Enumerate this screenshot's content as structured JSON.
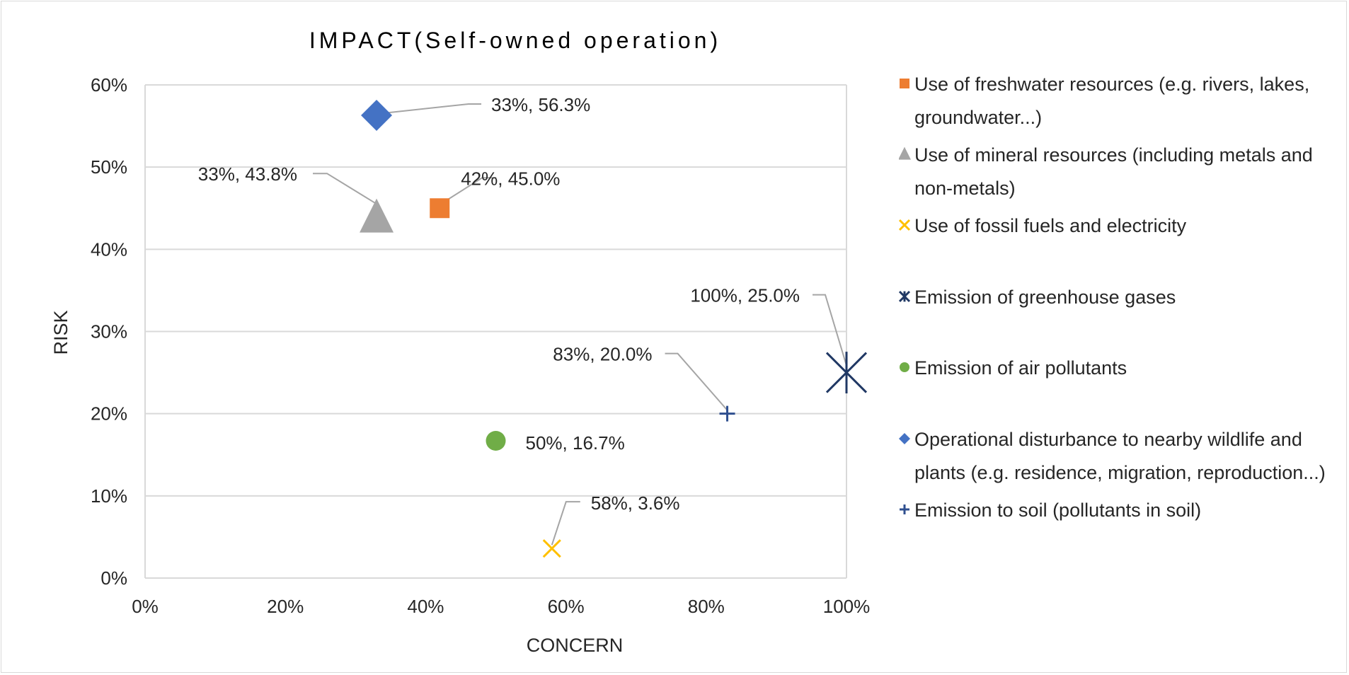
{
  "chart_data": {
    "type": "scatter",
    "title": "IMPACT(Self-owned operation)",
    "xlabel": "CONCERN",
    "ylabel": "RISK",
    "xlim": [
      0,
      1
    ],
    "ylim": [
      0,
      0.6
    ],
    "x_ticks": [
      0,
      0.2,
      0.4,
      0.6,
      0.8,
      1.0
    ],
    "x_tick_labels": [
      "0%",
      "20%",
      "40%",
      "60%",
      "80%",
      "100%"
    ],
    "y_ticks": [
      0,
      0.1,
      0.2,
      0.3,
      0.4,
      0.5,
      0.6
    ],
    "y_tick_labels": [
      "0%",
      "10%",
      "20%",
      "30%",
      "40%",
      "50%",
      "60%"
    ],
    "grid": "horizontal",
    "legend_position": "right",
    "series": [
      {
        "name": "Use of freshwater resources (e.g. rivers, lakes, groundwater...)",
        "marker": "square",
        "color": "#ed7d31",
        "x": 0.42,
        "y": 0.45,
        "label": "42%, 45.0%"
      },
      {
        "name": "Use of mineral resources (including metals and non-metals)",
        "marker": "triangle",
        "color": "#a5a5a5",
        "x": 0.33,
        "y": 0.438,
        "label": "33%, 43.8%"
      },
      {
        "name": "Use of fossil fuels and electricity",
        "marker": "x",
        "color": "#ffc000",
        "x": 0.58,
        "y": 0.036,
        "label": "58%, 3.6%"
      },
      {
        "name": "Emission of greenhouse gases",
        "marker": "star",
        "color": "#203864",
        "x": 1.0,
        "y": 0.25,
        "label": "100%, 25.0%"
      },
      {
        "name": "Emission of air pollutants",
        "marker": "circle",
        "color": "#70ad47",
        "x": 0.5,
        "y": 0.167,
        "label": "50%, 16.7%"
      },
      {
        "name": "Operational disturbance to nearby wildlife and plants (e.g. residence, migration, reproduction...)",
        "marker": "diamond",
        "color": "#4472c4",
        "x": 0.33,
        "y": 0.563,
        "label": "33%, 56.3%"
      },
      {
        "name": "Emission to soil (pollutants in soil)",
        "marker": "plus",
        "color": "#2f4f8f",
        "x": 0.83,
        "y": 0.2,
        "label": "83%, 20.0%"
      }
    ]
  }
}
